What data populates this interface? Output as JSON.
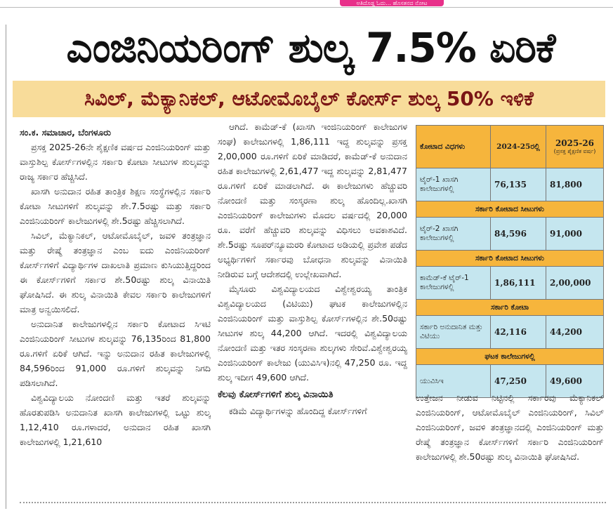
{
  "tag": "ಅತಿದೊಡ್ಡ ಓದು... ಹೊಸತನದ ನೋಟ",
  "headline": "ಎಂಜಿನಿಯರಿಂಗ್ ಶುಲ್ಕ 7.5% ಏರಿಕೆ",
  "subheadline": "ಸಿವಿಲ್, ಮೆಕ್ಯಾನಿಕಲ್, ಆಟೋಮೊಬೈಲ್ ಕೋರ್ಸ್ ಶುಲ್ಕ 50% ಇಳಿಕೆ",
  "byline": "ಸಂ.ಕ. ಸಮಾಚಾರ, ಬೆಂಗಳೂರು",
  "column1": [
    "ಪ್ರಸಕ್ತ 2025-26ನೇ ಶೈಕ್ಷಣಿಕ ವರ್ಷದ ಎಂಜಿನಿಯರಿಂಗ್ ಮತ್ತು ವಾಸ್ತುಶಿಲ್ಪ ಕೋರ್ಸ್‌ಗಳಲ್ಲಿನ ಸರ್ಕಾರಿ ಕೋಟಾ ಸೀಟುಗಳ ಶುಲ್ಕವನ್ನು ರಾಜ್ಯ ಸರ್ಕಾರ ಹೆಚ್ಚಿಸಿದೆ.",
    "ಖಾಸಗಿ ಅನುದಾನ ರಹಿತ ತಾಂತ್ರಿಕ ಶಿಕ್ಷಣ ಸಂಸ್ಥೆಗಳಲ್ಲಿನ ಸರ್ಕಾರಿ ಕೋಟಾ ಸೀಟುಗಳಿಗೆ ಶುಲ್ಕವನ್ನು ಶೇ.7.5ರಷ್ಟು ಮತ್ತು ಸರ್ಕಾರಿ ಎಂಜಿನಿಯರಿಂಗ್ ಕಾಲೇಜುಗಳಲ್ಲಿ ಶೇ.5ರಷ್ಟು ಹೆಚ್ಚಿಸಲಾಗಿದೆ.",
    "ಸಿವಿಲ್, ಮೆಕ್ಯಾನಿಕಲ್, ಆಟೋಮೊಬೈಲ್, ಜವಳಿ ತಂತ್ರಜ್ಞಾನ ಮತ್ತು ರೇಷ್ಮೆ ತಂತ್ರಜ್ಞಾನ ಎಂಬ ಐದು ಎಂಜಿನಿಯರಿಂಗ್ ಕೋರ್ಸ್‌ಗಳಿಗೆ ವಿದ್ಯಾರ್ಥಿಗಳ ದಾಖಲಾತಿ ಪ್ರಮಾಣ ಕುಸಿಯುತ್ತಿದ್ದರಿಂದ ಈ ಕೋರ್ಸ್‌ಗಳಿಗೆ ಸರ್ಕಾರ ಶೇ.50ರಷ್ಟು ಶುಲ್ಕ ವಿನಾಯಿತಿ ಘೋಷಿಸಿದೆ. ಈ ಶುಲ್ಕ ವಿನಾಯಿತಿ ಕೇವಲ ಸರ್ಕಾರಿ ಕಾಲೇಜುಗಳಿಗೆ ಮಾತ್ರ ಅನ್ವಯಿಸಲಿದೆ.",
    "ಅನುದಾನಿತ ಕಾಲೇಜುಗಳಲ್ಲಿನ ಸರ್ಕಾರಿ ಕೋಟಾದ ಸಿಇಟಿ ಎಂಜಿನಿಯರಿಂಗ್ ಸೀಟುಗಳ ಶುಲ್ಕವನ್ನು 76,135ರಿಂದ 81,800 ರೂ.ಗಳಿಗೆ ಏರಿಕೆ ಆಗಿದೆ. ಇನ್ನು ಅನುದಾನ ರಹಿತ ಕಾಲೇಜುಗಳಲ್ಲಿ 84,596ರಿಂದ 91,000 ರೂ.ಗಳಿಗೆ ಶುಲ್ಕವನ್ನು ನಿಗದಿ ಪಡಿಸಲಾಗಿದೆ.",
    "ವಿಶ್ವವಿದ್ಯಾಲಯ ನೋಂದಣಿ ಮತ್ತು ಇತರೆ ಶುಲ್ಕವನ್ನು ಹೊರತುಪಡಿಸಿ ಅನುದಾನಿತ ಖಾಸಗಿ ಕಾಲೇಜುಗಳಲ್ಲಿ ಒಟ್ಟು ಶುಲ್ಕ 1,12,410 ರೂ.ಗಳಾದರೆ, ಅನುದಾನ ರಹಿತ ಖಾಸಗಿ ಕಾಲೇಜುಗಳಲ್ಲಿ 1,21,610"
  ],
  "column2": [
    "ಆಗಿದೆ. ಕಾಮೆಡ್-ಕೆ (ಖಾಸಗಿ ಇಂಜಿನಿಯರಿಂಗ್ ಕಾಲೇಜುಗಳ ಸಂಘ) ಕಾಲೇಜುಗಳಲ್ಲಿ 1,86,111 ಇದ್ದ ಶುಲ್ಕವನ್ನು ಪ್ರಸಕ್ತ 2,00,000 ರೂ.ಗಳಿಗೆ ಏರಿಕೆ ಮಾಡಿದರೆ, ಕಾಮೆಡ್-ಕೆ ಅನುದಾನ ರಹಿತ ಕಾಲೇಜುಗಳಲ್ಲಿ 2,61,477 ಇದ್ದ ಶುಲ್ಕವನ್ನು 2,81,477 ರೂ.ಗಳಿಗೆ ಏರಿಕೆ ಮಾಡಲಾಗಿದೆ. ಈ ಕಾಲೇಜುಗಳು ಹೆಚ್ಚುವರಿ ನೋಂದಣಿ ಮತ್ತು ಸಂಸ್ಕರಣಾ ಶುಲ್ಕ ಹೊಂದಿಲ್ಲ.ಖಾಸಗಿ ಎಂಜಿನಿಯರಿಂಗ್ ಕಾಲೇಜುಗಳು ಮೊದಲ ವರ್ಷದಲ್ಲಿ 20,000 ರೂ. ವರೆಗೆ ಹೆಚ್ಚುವರಿ ಶುಲ್ಕವನ್ನು ವಿಧಿಸಲು ಅವಕಾಶವಿದೆ. ಶೇ.5ರಷ್ಟು ಸೂಪರ್‌ನ್ಯೂಮರರಿ ಕೋಟಾದ ಅಡಿಯಲ್ಲಿ ಪ್ರವೇಶ ಪಡೆದ ಅಭ್ಯರ್ಥಿಗಳಿಗೆ ಸರ್ಕಾರವು ಬೋಧನಾ ಶುಲ್ಕವನ್ನು ವಿನಾಯಿತಿ ನೀಡಿರುವ ಬಗ್ಗೆ ಆದೇಶದಲ್ಲಿ ಉಲ್ಲೇಖವಾಗಿದೆ.",
    "ಮೈಸೂರು ವಿಶ್ವವಿದ್ಯಾಲಯದ ವಿಶ್ವೇಶ್ವರಯ್ಯ ತಾಂತ್ರಿಕ ವಿಶ್ವವಿದ್ಯಾಲಯದ (ವಿಟಿಯು) ಘಟಕ ಕಾಲೇಜುಗಳಲ್ಲಿನ ಎಂಜಿನಿಯರಿಂಗ್ ಮತ್ತು ವಾಸ್ತುಶಿಲ್ಪ ಕೋರ್ಸ್‌ಗಳಲ್ಲಿನ ಶೇ.50ರಷ್ಟು ಸೀಟುಗಳ ಶುಲ್ಕ 44,200 ಆಗಿದೆ. ಇದರಲ್ಲಿ ವಿಶ್ವವಿದ್ಯಾಲಯ ನೋಂದಣಿ ಮತ್ತು ಇತರ ಸಂಸ್ಕರಣಾ ಶುಲ್ಕಗಳು ಸೇರಿವೆ.ವಿಶ್ವೇಶ್ವರಯ್ಯ ಎಂಜಿನಿಯರಿಂಗ್ ಕಾಲೇಜು (ಯುವಿಸಿಇ)ನಲ್ಲಿ 47,250 ರೂ. ಇದ್ದ ಶುಲ್ಕ ಇದೀಗ 49,600 ಆಗಿದೆ."
  ],
  "subhead": "ಕೆಲವು ಕೋರ್ಸ್‌ಗಳಿಗೆ ಶುಲ್ಕ ವಿನಾಯಿತಿ",
  "column2_end": "ಕಡಿಮೆ ವಿದ್ಯಾರ್ಥಿಗಳನ್ನು ಹೊಂದಿದ್ದ ಕೋರ್ಸ್‌ಗಳಿಗೆ",
  "table": {
    "header": {
      "quota_type": "ಕೋಟಾದ ವಿಧಗಳು",
      "year_prev": "2024-25ರಲ್ಲಿ",
      "year_current": "2025-26",
      "year_current_note": "(ಪ್ರಸಕ್ತ ಶೈಕ್ಷಣಿಕ ವರ್ಷ)"
    },
    "rows": [
      {
        "cells": [
          "ಟೈರ್-1 ಖಾಸಗಿ ಕಾಲೇಜುಗಳಲ್ಲಿ",
          "76,135",
          "81,800"
        ]
      },
      {
        "section": "ಸರ್ಕಾರಿ ಕೋಟಾದ ಸೀಟುಗಳು"
      },
      {
        "cells": [
          "ಟೈರ್-2 ಖಾಸಗಿ ಕಾಲೇಜುಗಳಲ್ಲಿ",
          "84,596",
          "91,000"
        ]
      },
      {
        "section": "ಸರ್ಕಾರಿ ಕೋಟಾದ ಸೀಟುಗಳು"
      },
      {
        "cells": [
          "ಕಾಮೆಡ್-ಕೆ ಟೈರ್-1 ಕಾಲೇಜುಗಳಲ್ಲಿ",
          "1,86,111",
          "2,00,000"
        ]
      },
      {
        "section": "ಸರ್ಕಾರಿ ಕೋಟಾ"
      },
      {
        "cells": [
          "ಸರ್ಕಾರಿ ಅನುದಾನಿತ ಮತ್ತು ವಿಟಿಯು",
          "42,116",
          "44,200"
        ]
      },
      {
        "section": "ಘಟಕ ಕಾಲೇಜುಗಳಲ್ಲಿ"
      },
      {
        "cells": [
          "ಯುವಿಸಿಇ",
          "47,250",
          "49,600"
        ]
      }
    ]
  },
  "column3": "ಉತ್ತೇಜನ ನೀಡುವ ನಿಟ್ಟಿನಲ್ಲಿ ಸರ್ಕಾರವು ಮೆಕ್ಯಾನಿಕಲ್ ಎಂಜಿನಿಯರಿಂಗ್, ಆಟೋಮೊಬೈಲ್ ಎಂಜಿನಿಯರಿಂಗ್, ಸಿವಿಲ್ ಎಂಜಿನಿಯರಿಂಗ್, ಜವಳಿ ತಂತ್ರಜ್ಞಾನದಲ್ಲಿ ಎಂಜಿನಿಯರಿಂಗ್ ಮತ್ತು ರೇಷ್ಮೆ ತಂತ್ರಜ್ಞಾನ ಕೋರ್ಸ್‌ಗಳಿಗೆ ಸರ್ಕಾರಿ ಎಂಜಿನಿಯರಿಂಗ್ ಕಾಲೇಜುಗಳಲ್ಲಿ ಶೇ.50ರಷ್ಟು ಶುಲ್ಕ ವಿನಾಯಿತಿ ಘೋಷಿಸಿದೆ."
}
